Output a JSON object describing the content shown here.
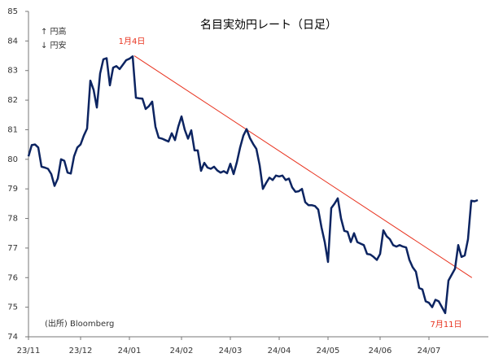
{
  "chart_data": {
    "type": "line",
    "title": "名目実効円レート（日足）",
    "notes": [
      "↑ 円高",
      "↓ 円安"
    ],
    "source": "(出所) Bloomberg",
    "categories": [
      "23/11",
      null,
      null,
      null,
      null,
      null,
      null,
      null,
      null,
      null,
      null,
      null,
      null,
      null,
      null,
      null,
      "23/12",
      null,
      null,
      null,
      null,
      null,
      null,
      null,
      null,
      null,
      null,
      null,
      null,
      null,
      null,
      "24/01",
      null,
      null,
      null,
      null,
      null,
      null,
      null,
      null,
      null,
      null,
      null,
      null,
      null,
      null,
      null,
      "24/02",
      null,
      null,
      null,
      null,
      null,
      null,
      null,
      null,
      null,
      null,
      null,
      null,
      null,
      null,
      "24/03",
      null,
      null,
      null,
      null,
      null,
      null,
      null,
      null,
      null,
      null,
      null,
      null,
      null,
      null,
      "24/04",
      null,
      null,
      null,
      null,
      null,
      null,
      null,
      null,
      null,
      null,
      null,
      null,
      null,
      null,
      "24/05",
      null,
      null,
      null,
      null,
      null,
      null,
      null,
      null,
      null,
      null,
      null,
      null,
      null,
      null,
      null,
      "24/06",
      null,
      null,
      null,
      null,
      null,
      null,
      null,
      null,
      null,
      null,
      null,
      null,
      null,
      null,
      "24/07",
      null,
      null,
      null,
      null,
      null,
      null,
      null,
      null,
      null,
      null,
      null,
      null,
      null,
      null,
      null
    ],
    "series": [
      {
        "color": "#0c2461",
        "values": [
          80.1,
          80.48,
          80.5,
          80.4,
          79.75,
          79.72,
          79.68,
          79.5,
          79.1,
          79.35,
          80.0,
          79.95,
          79.55,
          79.52,
          80.1,
          80.4,
          80.5,
          80.8,
          81.04,
          82.66,
          82.35,
          81.75,
          82.9,
          83.38,
          83.42,
          82.5,
          83.1,
          83.15,
          83.05,
          83.2,
          83.35,
          83.4,
          83.48,
          82.08,
          82.06,
          82.05,
          81.7,
          81.8,
          81.95,
          81.1,
          80.73,
          80.7,
          80.65,
          80.6,
          80.88,
          80.65,
          81.1,
          81.45,
          81.0,
          80.7,
          80.98,
          80.3,
          80.3,
          79.61,
          79.88,
          79.72,
          79.68,
          79.75,
          79.62,
          79.55,
          79.6,
          79.53,
          79.85,
          79.5,
          79.9,
          80.4,
          80.8,
          81.02,
          80.72,
          80.52,
          80.35,
          79.8,
          79.0,
          79.2,
          79.38,
          79.3,
          79.45,
          79.42,
          79.45,
          79.3,
          79.35,
          79.05,
          78.9,
          78.92,
          79.0,
          78.55,
          78.45,
          78.45,
          78.42,
          78.3,
          77.7,
          77.2,
          76.53,
          78.35,
          78.5,
          78.68,
          78.0,
          77.58,
          77.55,
          77.2,
          77.5,
          77.2,
          77.15,
          77.1,
          76.8,
          76.78,
          76.7,
          76.6,
          76.8,
          77.6,
          77.4,
          77.3,
          77.1,
          77.05,
          77.1,
          77.05,
          77.02,
          76.6,
          76.35,
          76.2,
          75.65,
          75.6,
          75.2,
          75.15,
          75.0,
          75.25,
          75.2,
          75.0,
          74.8,
          75.9,
          76.1,
          76.3,
          77.1,
          76.7,
          76.75,
          77.3,
          78.6,
          78.58,
          78.62
        ]
      }
    ],
    "trend_line": {
      "color": "#e8321e",
      "values": [
        83.5,
        76.0
      ]
    },
    "annotations": [
      {
        "text": "1月4日",
        "color": "#e8321e"
      },
      {
        "text": "7月11日",
        "color": "#e8321e"
      }
    ],
    "ylim": [
      74,
      85
    ],
    "yticks": [
      74,
      75,
      76,
      77,
      78,
      79,
      80,
      81,
      82,
      83,
      84,
      85
    ],
    "grid": false
  }
}
